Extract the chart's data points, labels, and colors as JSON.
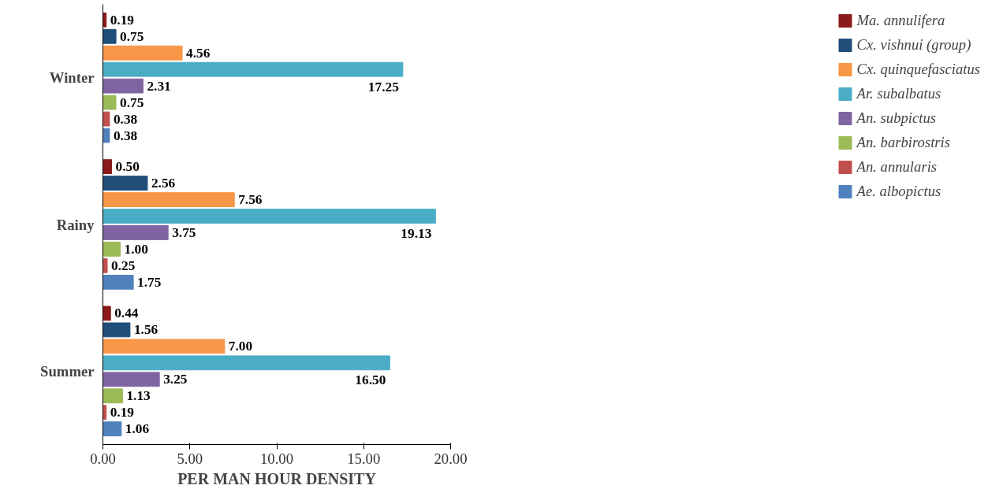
{
  "chart_data": {
    "type": "bar",
    "orientation": "horizontal",
    "xlabel": "PER MAN HOUR DENSITY",
    "categories": [
      "Winter",
      "Rainy",
      "Summer"
    ],
    "xlim": [
      0,
      20
    ],
    "xticks": [
      {
        "value": 0,
        "label": "0.00"
      },
      {
        "value": 5,
        "label": "5.00"
      },
      {
        "value": 10,
        "label": "10.00"
      },
      {
        "value": 15,
        "label": "15.00"
      },
      {
        "value": 20,
        "label": "20.00"
      }
    ],
    "grid": false,
    "legend": "right",
    "series": [
      {
        "name": "Ma. annulifera",
        "color": "#8b1a1a",
        "values": [
          0.19,
          0.5,
          0.44
        ],
        "value_labels": [
          "0.19",
          "0.50",
          "0.44"
        ]
      },
      {
        "name": "Cx. vishnui (group)",
        "color": "#1f4e79",
        "values": [
          0.75,
          2.56,
          1.56
        ],
        "value_labels": [
          "0.75",
          "2.56",
          "1.56"
        ]
      },
      {
        "name": "Cx. quinquefasciatus",
        "color": "#f79646",
        "values": [
          4.56,
          7.56,
          7.0
        ],
        "value_labels": [
          "4.56",
          "7.56",
          "7.00"
        ]
      },
      {
        "name": "Ar. subalbatus",
        "color": "#4bacc6",
        "values": [
          17.25,
          19.13,
          16.5
        ],
        "value_labels": [
          "17.25",
          "19.13",
          "16.50"
        ]
      },
      {
        "name": "An. subpictus",
        "color": "#8064a2",
        "values": [
          2.31,
          3.75,
          3.25
        ],
        "value_labels": [
          "2.31",
          "3.75",
          "3.25"
        ]
      },
      {
        "name": "An. barbirostris",
        "color": "#9bbb59",
        "values": [
          0.75,
          1.0,
          1.13
        ],
        "value_labels": [
          "0.75",
          "1.00",
          "1.13"
        ]
      },
      {
        "name": "An. annularis",
        "color": "#c0504d",
        "values": [
          0.38,
          0.25,
          0.19
        ],
        "value_labels": [
          "0.38",
          "0.25",
          "0.19"
        ]
      },
      {
        "name": "Ae. albopictus",
        "color": "#4f81bd",
        "values": [
          0.38,
          1.75,
          1.06
        ],
        "value_labels": [
          "0.38",
          "1.75",
          "1.06"
        ]
      }
    ]
  }
}
